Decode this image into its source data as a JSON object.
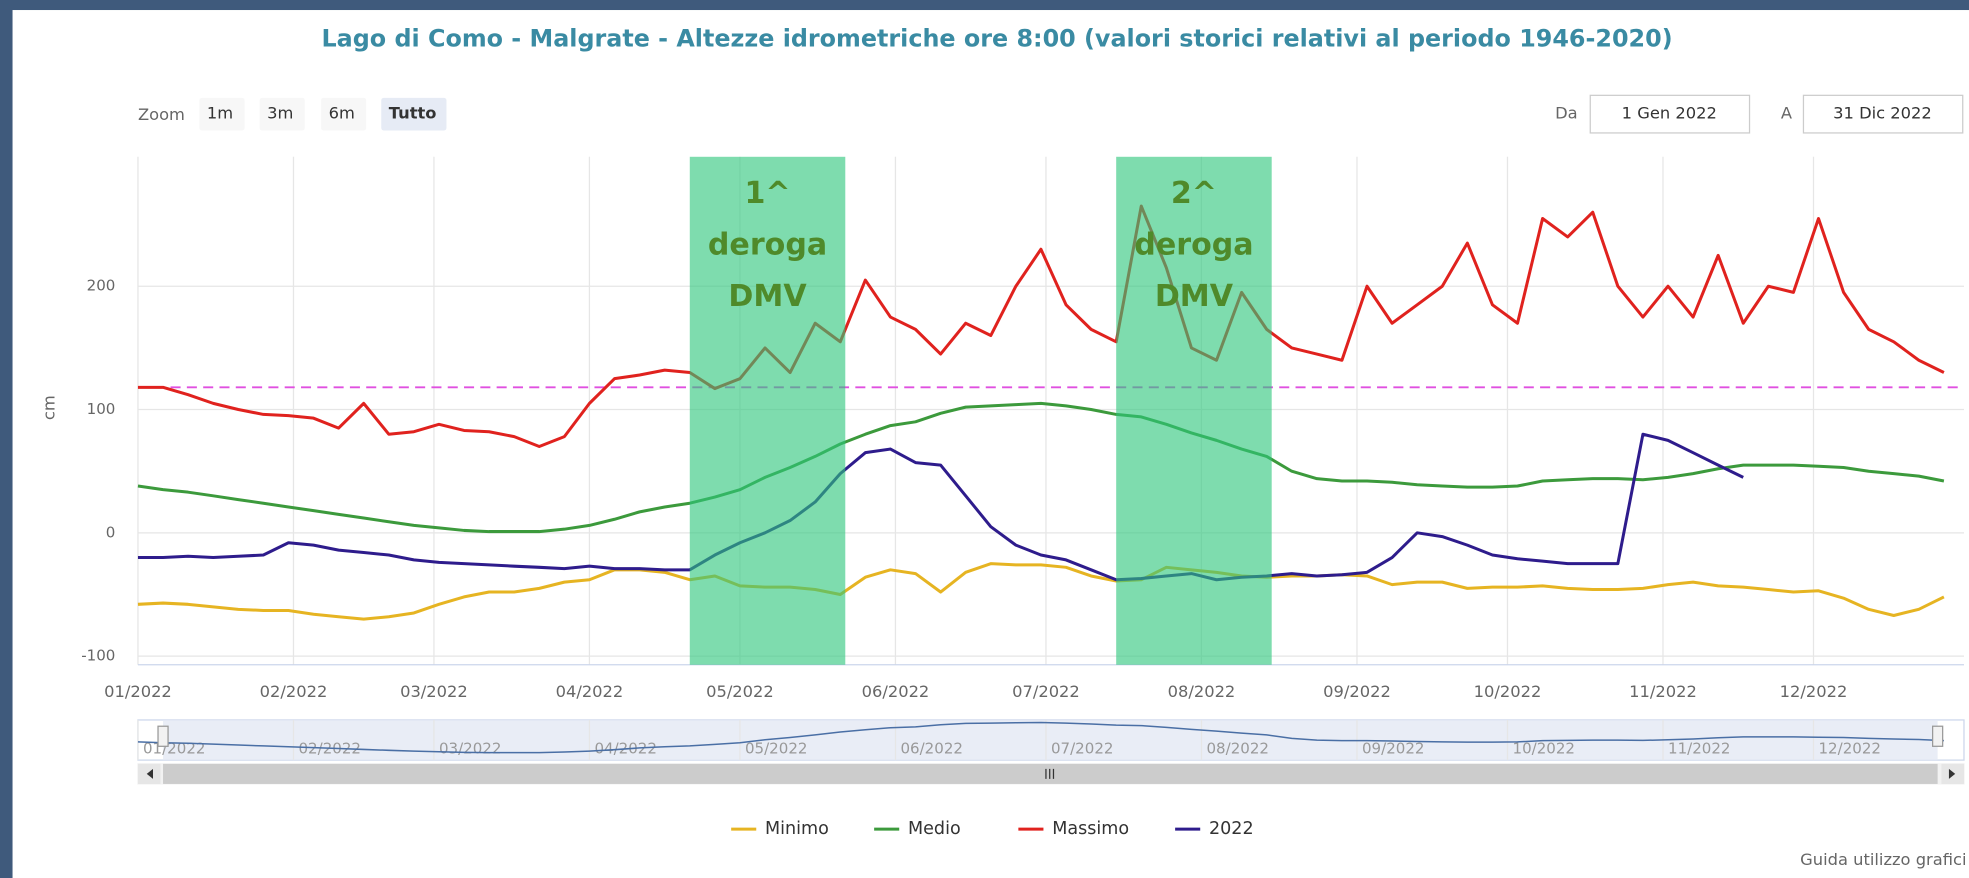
{
  "chart_data": {
    "type": "line",
    "title": "Lago di Como - Malgrate - Altezze idrometriche ore 8:00 (valori storici relativi al periodo 1946-2020)",
    "zoom": {
      "label": "Zoom",
      "buttons": [
        "1m",
        "3m",
        "6m",
        "Tutto"
      ],
      "selected": 3
    },
    "range": {
      "from_label": "Da",
      "from": "1 Gen 2022",
      "to_label": "A",
      "to": "31 Dic 2022"
    },
    "ylabel": "cm",
    "x": [
      0,
      5,
      10,
      15,
      20,
      25,
      30,
      35,
      40,
      45,
      50,
      55,
      60,
      65,
      70,
      75,
      80,
      85,
      90,
      95,
      100,
      105,
      110,
      115,
      120,
      125,
      130,
      135,
      140,
      145,
      150,
      155,
      160,
      165,
      170,
      175,
      180,
      185,
      190,
      195,
      200,
      205,
      210,
      215,
      220,
      225,
      230,
      235,
      240,
      245,
      250,
      255,
      260,
      265,
      270,
      275,
      280,
      285,
      290,
      295,
      300,
      305,
      310,
      315,
      320,
      325,
      330,
      335,
      340,
      345,
      350,
      355,
      360
    ],
    "xlim": [
      0,
      364
    ],
    "xticks": [
      {
        "value": 0,
        "label": "01/2022"
      },
      {
        "value": 31,
        "label": "02/2022"
      },
      {
        "value": 59,
        "label": "03/2022"
      },
      {
        "value": 90,
        "label": "04/2022"
      },
      {
        "value": 120,
        "label": "05/2022"
      },
      {
        "value": 151,
        "label": "06/2022"
      },
      {
        "value": 181,
        "label": "07/2022"
      },
      {
        "value": 212,
        "label": "08/2022"
      },
      {
        "value": 243,
        "label": "09/2022"
      },
      {
        "value": 273,
        "label": "10/2022"
      },
      {
        "value": 304,
        "label": "11/2022"
      },
      {
        "value": 334,
        "label": "12/2022"
      }
    ],
    "ylim": [
      -107,
      305
    ],
    "yticks": [
      -100,
      0,
      100,
      200
    ],
    "grid": true,
    "series": [
      {
        "name": "Minimo",
        "color": "#e6b422",
        "values": [
          -58,
          -57,
          -58,
          -60,
          -62,
          -63,
          -63,
          -66,
          -68,
          -70,
          -68,
          -65,
          -58,
          -52,
          -48,
          -48,
          -45,
          -40,
          -38,
          -30,
          -30,
          -32,
          -38,
          -35,
          -43,
          -44,
          -44,
          -46,
          -50,
          -36,
          -30,
          -33,
          -48,
          -32,
          -25,
          -26,
          -26,
          -28,
          -35,
          -39,
          -38,
          -28,
          -30,
          -32,
          -35,
          -36,
          -35,
          -35,
          -34,
          -35,
          -42,
          -40,
          -40,
          -45,
          -44,
          -44,
          -43,
          -45,
          -46,
          -46,
          -45,
          -42,
          -40,
          -43,
          -44,
          -46,
          -48,
          -47,
          -53,
          -62,
          -67,
          -62,
          -52
        ]
      },
      {
        "name": "Medio",
        "color": "#3c9a3c",
        "values": [
          38,
          35,
          33,
          30,
          27,
          24,
          21,
          18,
          15,
          12,
          9,
          6,
          4,
          2,
          1,
          1,
          1,
          3,
          6,
          11,
          17,
          21,
          24,
          29,
          35,
          45,
          53,
          62,
          72,
          80,
          87,
          90,
          97,
          102,
          103,
          104,
          105,
          103,
          100,
          96,
          94,
          88,
          81,
          75,
          68,
          62,
          50,
          44,
          42,
          42,
          41,
          39,
          38,
          37,
          37,
          38,
          42,
          43,
          44,
          44,
          43,
          45,
          48,
          52,
          55,
          55,
          55,
          54,
          53,
          50,
          48,
          46,
          42
        ]
      },
      {
        "name": "Massimo",
        "color": "#e0221e",
        "values": [
          118,
          118,
          112,
          105,
          100,
          96,
          95,
          93,
          85,
          105,
          80,
          82,
          88,
          83,
          82,
          78,
          70,
          78,
          105,
          125,
          128,
          132,
          130,
          117,
          125,
          150,
          130,
          170,
          155,
          205,
          175,
          165,
          145,
          170,
          160,
          200,
          230,
          185,
          165,
          155,
          265,
          215,
          150,
          140,
          195,
          165,
          150,
          145,
          140,
          200,
          170,
          185,
          200,
          235,
          185,
          170,
          255,
          240,
          260,
          200,
          175,
          200,
          175,
          225,
          170,
          200,
          195,
          255,
          195,
          165,
          155,
          140,
          130
        ]
      },
      {
        "name": "2022",
        "color": "#2e1c8c",
        "values": [
          -20,
          -20,
          -19,
          -20,
          -19,
          -18,
          -8,
          -10,
          -14,
          -16,
          -18,
          -22,
          -24,
          -25,
          -26,
          -27,
          -28,
          -29,
          -27,
          -29,
          -29,
          -30,
          -30,
          -18,
          -8,
          0,
          10,
          25,
          48,
          65,
          68,
          57,
          55,
          30,
          5,
          -10,
          -18,
          -22,
          -30,
          -38,
          -37,
          -35,
          -33,
          -38,
          -36,
          -35,
          -33,
          -35,
          -34,
          -32,
          -20,
          0,
          -3,
          -10,
          -18,
          -21,
          -23,
          -25,
          -25,
          -25,
          80,
          75,
          65,
          55,
          45,
          null,
          null,
          null,
          null,
          null,
          null,
          null,
          null
        ]
      }
    ],
    "reference_line": {
      "value": 118,
      "color": "#e050e0",
      "dashed": true
    },
    "annotations": [
      {
        "x0": 110,
        "x1": 141,
        "lines": [
          "1^",
          "deroga",
          "DMV"
        ],
        "color": "#2fc77c"
      },
      {
        "x0": 195,
        "x1": 226,
        "lines": [
          "2^",
          "deroga",
          "DMV"
        ],
        "color": "#2fc77c"
      }
    ],
    "footer": "Guida utilizzo grafici"
  }
}
